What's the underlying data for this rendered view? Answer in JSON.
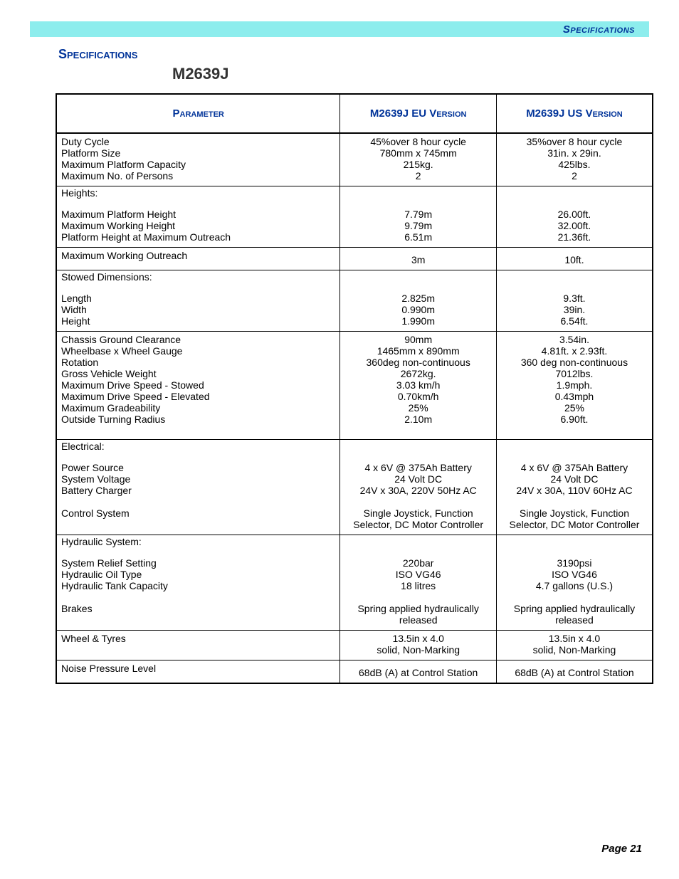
{
  "header": {
    "label": "Specifications"
  },
  "section_title": "Specifications",
  "model_title": "M2639J",
  "columns": {
    "col1": "Parameter",
    "col2": "M2639J EU Version",
    "col3": "M2639J US Version"
  },
  "rows": [
    {
      "param_lines": [
        "Duty Cycle",
        "Platform Size",
        "Maximum Platform Capacity",
        "Maximum No. of Persons"
      ],
      "eu_lines": [
        "45%over 8 hour cycle",
        "780mm x 745mm",
        "215kg.",
        "2"
      ],
      "us_lines": [
        "35%over 8 hour cycle",
        "31in. x 29in.",
        "425lbs.",
        "2"
      ]
    },
    {
      "head": "Heights:",
      "param_lines": [
        "Maximum Platform Height",
        "Maximum Working Height",
        "Platform Height at Maximum Outreach"
      ],
      "eu_lines": [
        "7.79m",
        "9.79m",
        "6.51m"
      ],
      "us_lines": [
        "26.00ft.",
        "32.00ft.",
        "21.36ft."
      ]
    },
    {
      "param_lines": [
        "Maximum Working Outreach"
      ],
      "eu_lines": [
        "3m"
      ],
      "us_lines": [
        "10ft."
      ],
      "eu_pad_top": true,
      "us_pad_top": true
    },
    {
      "head": "Stowed Dimensions:",
      "param_lines": [
        "Length",
        "Width",
        "Height"
      ],
      "eu_lines": [
        "2.825m",
        "0.990m",
        "1.990m"
      ],
      "us_lines": [
        "9.3ft.",
        "39in.",
        "6.54ft."
      ]
    },
    {
      "param_lines": [
        "Chassis Ground Clearance",
        "Wheelbase x Wheel Gauge",
        "Rotation",
        "Gross Vehicle Weight",
        "Maximum Drive Speed - Stowed",
        "Maximum Drive Speed - Elevated",
        "Maximum Gradeability",
        "Outside Turning Radius"
      ],
      "eu_lines": [
        "90mm",
        "1465mm x 890mm",
        "360deg non-continuous",
        "2672kg.",
        "3.03 km/h",
        "0.70km/h",
        "25%",
        "2.10m"
      ],
      "us_lines": [
        "3.54in.",
        "4.81ft. x 2.93ft.",
        "360 deg non-continuous",
        "7012lbs.",
        "1.9mph.",
        "0.43mph",
        "25%",
        "6.90ft."
      ],
      "extra_bottom": true
    },
    {
      "head": "Electrical:",
      "param_lines": [
        "Power Source",
        "System Voltage",
        "Battery Charger",
        "",
        "Control System"
      ],
      "eu_lines": [
        "4 x 6V @ 375Ah Battery",
        "24 Volt DC",
        "24V x 30A, 220V 50Hz AC",
        "",
        "Single Joystick, Function Selector, DC Motor Controller"
      ],
      "us_lines": [
        "4 x 6V @ 375Ah Battery",
        "24 Volt DC",
        "24V x 30A, 110V 60Hz AC",
        "",
        "Single Joystick, Function Selector, DC Motor Controller"
      ],
      "extra_bottom": true
    },
    {
      "head": "Hydraulic System:",
      "param_lines": [
        "System Relief Setting",
        "Hydraulic Oil Type",
        "Hydraulic Tank Capacity",
        "",
        "Brakes"
      ],
      "eu_lines": [
        "220bar",
        "ISO VG46",
        "18 litres",
        "",
        "Spring applied hydraulically released"
      ],
      "us_lines": [
        "3190psi",
        "ISO VG46",
        "4.7 gallons (U.S.)",
        "",
        "Spring applied hydraulically released"
      ]
    },
    {
      "param_lines": [
        "Wheel & Tyres"
      ],
      "eu_lines": [
        "13.5in x 4.0",
        "solid, Non-Marking"
      ],
      "us_lines": [
        "13.5in x 4.0",
        "solid, Non-Marking"
      ]
    },
    {
      "param_lines": [
        "Noise Pressure Level"
      ],
      "eu_lines": [
        "68dB (A) at Control Station"
      ],
      "us_lines": [
        "68dB (A) at Control Station"
      ],
      "eu_pad_top": true,
      "us_pad_top": true
    }
  ],
  "footer": "Page 21",
  "colors": {
    "header_bg": "#8deded",
    "heading_text": "#003399",
    "body_text": "#000000",
    "border": "#000000",
    "background": "#ffffff"
  },
  "fonts": {
    "family": "Arial",
    "header_size_pt": 15,
    "section_title_pt": 18,
    "model_title_pt": 22,
    "th_pt": 15,
    "td_pt": 14,
    "footer_pt": 15
  }
}
